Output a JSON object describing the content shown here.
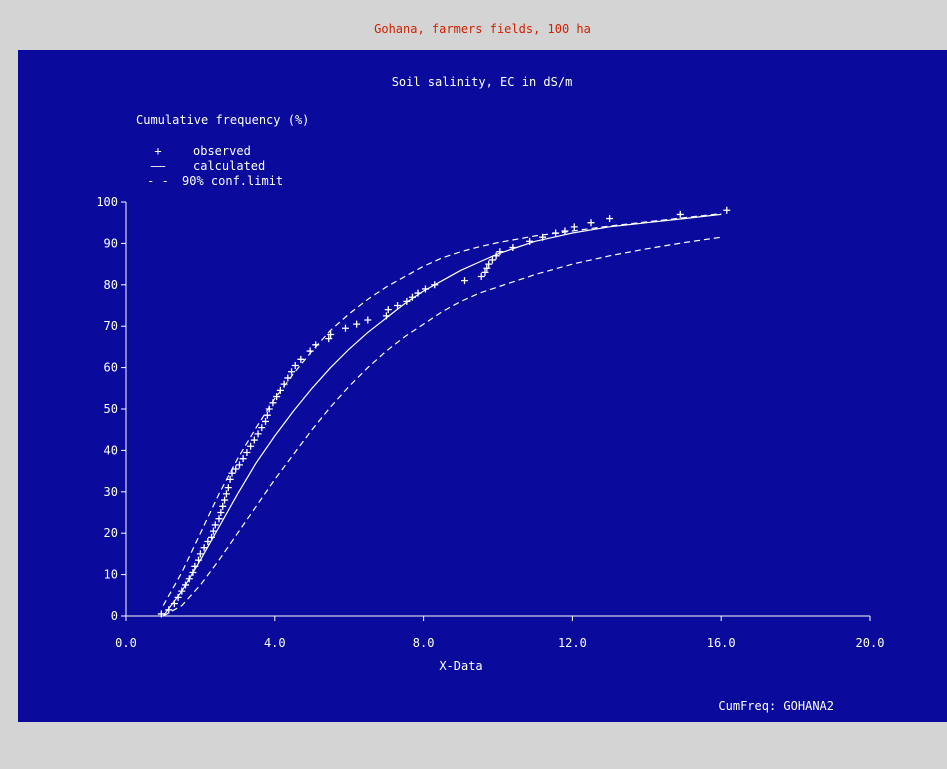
{
  "window_title": "Gohana, farmers fields, 100 ha",
  "program_label": "CumFreq: GOHANA2",
  "colors": {
    "panel_background": "#0a0a9c",
    "window_background": "#d4d4d4",
    "title_color": "#cc2200",
    "plot_ink": "#ffffff"
  },
  "chart_data": {
    "type": "scatter",
    "title": "Soil salinity, EC in dS/m",
    "ylabel": "Cumulative frequency (%)",
    "xlabel": "X-Data",
    "xlim": [
      0,
      20
    ],
    "ylim": [
      0,
      100
    ],
    "x_ticks": [
      "0.0",
      "4.0",
      "8.0",
      "12.0",
      "16.0",
      "20.0"
    ],
    "y_ticks": [
      "0",
      "10",
      "20",
      "30",
      "40",
      "50",
      "60",
      "70",
      "80",
      "90",
      "100"
    ],
    "grid": false,
    "legend_position": "top-left",
    "legend": [
      {
        "symbol": "+",
        "label": "observed"
      },
      {
        "symbol": "——",
        "label": "calculated"
      },
      {
        "symbol": "- -",
        "label": "90% conf.limit"
      }
    ],
    "series": [
      {
        "name": "observed",
        "style": "plus-markers",
        "points": [
          [
            0.95,
            0.5
          ],
          [
            1.15,
            1.5
          ],
          [
            1.3,
            3
          ],
          [
            1.4,
            4.5
          ],
          [
            1.5,
            6
          ],
          [
            1.6,
            7.5
          ],
          [
            1.7,
            9
          ],
          [
            1.8,
            10.5
          ],
          [
            1.85,
            12
          ],
          [
            1.95,
            13.5
          ],
          [
            2.0,
            15
          ],
          [
            2.1,
            16.5
          ],
          [
            2.2,
            18
          ],
          [
            2.3,
            19
          ],
          [
            2.35,
            20.5
          ],
          [
            2.4,
            22
          ],
          [
            2.5,
            23.5
          ],
          [
            2.55,
            25
          ],
          [
            2.6,
            26.5
          ],
          [
            2.65,
            28
          ],
          [
            2.7,
            29.5
          ],
          [
            2.75,
            31
          ],
          [
            2.8,
            33
          ],
          [
            2.85,
            34.5
          ],
          [
            2.95,
            35.5
          ],
          [
            3.05,
            36.5
          ],
          [
            3.15,
            38
          ],
          [
            3.25,
            39.5
          ],
          [
            3.35,
            41
          ],
          [
            3.45,
            42.5
          ],
          [
            3.55,
            44
          ],
          [
            3.65,
            45.5
          ],
          [
            3.75,
            47
          ],
          [
            3.8,
            48.5
          ],
          [
            3.85,
            50
          ],
          [
            3.95,
            51.5
          ],
          [
            4.05,
            53
          ],
          [
            4.15,
            54.5
          ],
          [
            4.25,
            56
          ],
          [
            4.35,
            57.5
          ],
          [
            4.45,
            59
          ],
          [
            4.55,
            60.5
          ],
          [
            4.7,
            62
          ],
          [
            4.95,
            64
          ],
          [
            5.1,
            65.5
          ],
          [
            5.45,
            67
          ],
          [
            5.5,
            68
          ],
          [
            5.9,
            69.5
          ],
          [
            6.2,
            70.5
          ],
          [
            6.5,
            71.5
          ],
          [
            7.0,
            72.5
          ],
          [
            7.05,
            74
          ],
          [
            7.3,
            75
          ],
          [
            7.55,
            76
          ],
          [
            7.7,
            77
          ],
          [
            7.85,
            78
          ],
          [
            8.05,
            79
          ],
          [
            8.3,
            80
          ],
          [
            9.1,
            81
          ],
          [
            9.55,
            82
          ],
          [
            9.65,
            83
          ],
          [
            9.7,
            84
          ],
          [
            9.75,
            85
          ],
          [
            9.85,
            86
          ],
          [
            9.95,
            87
          ],
          [
            10.05,
            88
          ],
          [
            10.4,
            89
          ],
          [
            10.85,
            90.5
          ],
          [
            11.2,
            91.5
          ],
          [
            11.55,
            92.5
          ],
          [
            11.8,
            93
          ],
          [
            12.05,
            94
          ],
          [
            12.5,
            95
          ],
          [
            13.0,
            96
          ],
          [
            14.9,
            97
          ],
          [
            16.15,
            98
          ]
        ]
      },
      {
        "name": "calculated",
        "style": "solid",
        "points": [
          [
            1.0,
            0
          ],
          [
            1.5,
            6
          ],
          [
            2.0,
            13.5
          ],
          [
            2.5,
            21.5
          ],
          [
            3.0,
            29.5
          ],
          [
            3.5,
            37
          ],
          [
            4.0,
            43.5
          ],
          [
            4.5,
            49.5
          ],
          [
            5.0,
            55
          ],
          [
            5.5,
            60
          ],
          [
            6.0,
            64.5
          ],
          [
            6.5,
            68.5
          ],
          [
            7.0,
            72
          ],
          [
            7.5,
            75.5
          ],
          [
            8.0,
            78.5
          ],
          [
            8.5,
            81
          ],
          [
            9.0,
            83.5
          ],
          [
            9.5,
            85.5
          ],
          [
            10.0,
            87.5
          ],
          [
            10.5,
            89
          ],
          [
            11.0,
            90.5
          ],
          [
            11.5,
            91.5
          ],
          [
            12.0,
            92.5
          ],
          [
            13.0,
            94
          ],
          [
            14.0,
            95
          ],
          [
            15.0,
            96
          ],
          [
            16.0,
            97
          ]
        ]
      },
      {
        "name": "90% conf.limit",
        "style": "dashed",
        "points": [
          [
            1.0,
            2.5
          ],
          [
            1.5,
            10.5
          ],
          [
            2.0,
            20
          ],
          [
            2.5,
            29.5
          ],
          [
            3.0,
            38
          ],
          [
            3.5,
            45.5
          ],
          [
            4.0,
            52.5
          ],
          [
            4.5,
            58.5
          ],
          [
            5.0,
            64
          ],
          [
            5.5,
            69
          ],
          [
            6.0,
            73
          ],
          [
            6.5,
            76.5
          ],
          [
            7.0,
            79.5
          ],
          [
            7.5,
            82
          ],
          [
            8.0,
            84.5
          ],
          [
            8.5,
            86.5
          ],
          [
            9.0,
            88
          ],
          [
            9.5,
            89.2
          ],
          [
            10.0,
            90.2
          ],
          [
            11.0,
            91.8
          ],
          [
            12.0,
            93
          ],
          [
            13.0,
            94.2
          ],
          [
            14.0,
            95.2
          ],
          [
            15.0,
            96.2
          ],
          [
            16.0,
            97.2
          ]
        ]
      },
      {
        "name": "90% conf.limit",
        "style": "dashed",
        "points": [
          [
            1.0,
            0
          ],
          [
            1.5,
            2.5
          ],
          [
            2.0,
            7.5
          ],
          [
            2.5,
            13.5
          ],
          [
            3.0,
            20
          ],
          [
            3.5,
            26.5
          ],
          [
            4.0,
            33
          ],
          [
            4.5,
            39
          ],
          [
            5.0,
            45
          ],
          [
            5.5,
            50.5
          ],
          [
            6.0,
            55.5
          ],
          [
            6.5,
            60
          ],
          [
            7.0,
            64
          ],
          [
            7.5,
            67.5
          ],
          [
            8.0,
            70.5
          ],
          [
            8.5,
            73.5
          ],
          [
            9.0,
            76
          ],
          [
            9.5,
            78
          ],
          [
            10.0,
            79.5
          ],
          [
            11.0,
            82.5
          ],
          [
            12.0,
            85
          ],
          [
            13.0,
            87
          ],
          [
            14.0,
            88.7
          ],
          [
            15.0,
            90.2
          ],
          [
            16.0,
            91.5
          ]
        ]
      }
    ]
  }
}
